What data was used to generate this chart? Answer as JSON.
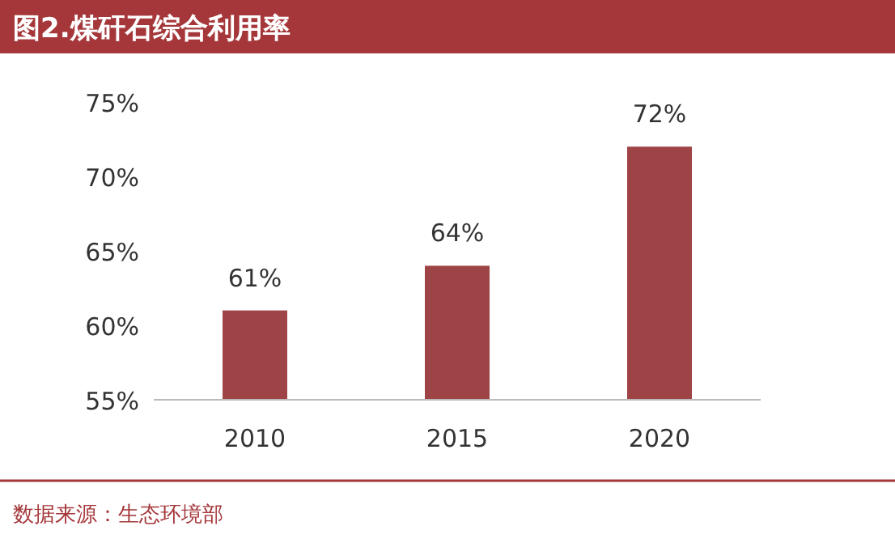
{
  "chart_data": {
    "type": "bar",
    "title": "图2.煤矸石综合利用率",
    "categories": [
      "2010",
      "2015",
      "2020"
    ],
    "values": [
      61,
      64,
      72
    ],
    "value_labels": [
      "61%",
      "64%",
      "72%"
    ],
    "color": "#9e4446",
    "ylim": [
      55,
      75
    ],
    "yticks": [
      {
        "value": 55,
        "label": "55%"
      },
      {
        "value": 60,
        "label": "60%"
      },
      {
        "value": 65,
        "label": "65%"
      },
      {
        "value": 70,
        "label": "70%"
      },
      {
        "value": 75,
        "label": "75%"
      }
    ],
    "annotations": [
      "数据来源：生态环境部"
    ]
  }
}
